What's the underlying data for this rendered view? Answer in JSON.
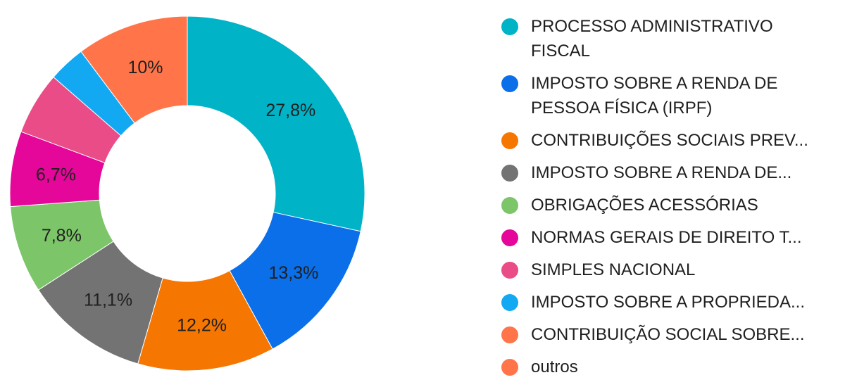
{
  "chart_data": {
    "type": "pie",
    "variant": "donut",
    "legend_position": "right",
    "slices": [
      {
        "label": "PROCESSO ADMINISTRATIVO FISCAL",
        "legend_text": "PROCESSO ADMINISTRATIVO FISCAL",
        "value": 27.8,
        "value_label": "27,8%",
        "color": "#00B3C7"
      },
      {
        "label": "IMPOSTO SOBRE A RENDA DE PESSOA FÍSICA (IRPF)",
        "legend_text": "IMPOSTO SOBRE A RENDA DE PESSOA FÍSICA (IRPF)",
        "value": 13.3,
        "value_label": "13,3%",
        "color": "#0A6FE8"
      },
      {
        "label": "CONTRIBUIÇÕES SOCIAIS PREV...",
        "legend_text": "CONTRIBUIÇÕES SOCIAIS PREV...",
        "value": 12.2,
        "value_label": "12,2%",
        "color": "#F57600"
      },
      {
        "label": "IMPOSTO SOBRE A RENDA DE...",
        "legend_text": "IMPOSTO SOBRE A RENDA DE...",
        "value": 11.1,
        "value_label": "11,1%",
        "color": "#737373"
      },
      {
        "label": "OBRIGAÇÕES ACESSÓRIAS",
        "legend_text": "OBRIGAÇÕES ACESSÓRIAS",
        "value": 7.8,
        "value_label": "7,8%",
        "color": "#7CC569"
      },
      {
        "label": "NORMAS GERAIS DE DIREITO T...",
        "legend_text": "NORMAS GERAIS DE DIREITO T...",
        "value": 6.7,
        "value_label": "6,7%",
        "color": "#E5069A"
      },
      {
        "label": "SIMPLES NACIONAL",
        "legend_text": "SIMPLES NACIONAL",
        "value": 5.6,
        "value_label": "",
        "color": "#E94C86"
      },
      {
        "label": "IMPOSTO SOBRE A PROPRIEDA...",
        "legend_text": "IMPOSTO SOBRE A PROPRIEDA...",
        "value": 3.3,
        "value_label": "",
        "color": "#13A9F2"
      },
      {
        "label": "CONTRIBUIÇÃO SOCIAL SOBRE...",
        "legend_text": "CONTRIBUIÇÃO SOCIAL SOBRE...",
        "value": 0,
        "value_label": "",
        "color": "#FF7549"
      },
      {
        "label": "outros",
        "legend_text": "outros",
        "value": 10.0,
        "value_label": "10%",
        "color": "#FF7549"
      }
    ]
  }
}
